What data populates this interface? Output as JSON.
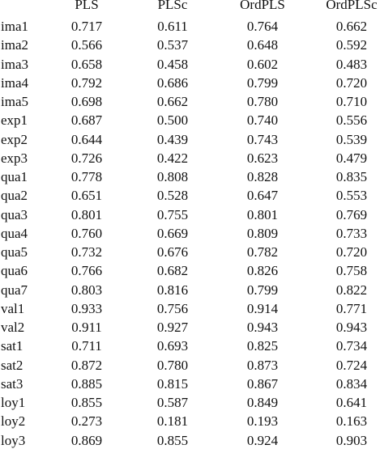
{
  "table": {
    "columns": [
      "PLS",
      "PLSc",
      "OrdPLS",
      "OrdPLSc"
    ],
    "rows": [
      [
        "ima1",
        "0.717",
        "0.611",
        "0.764",
        "0.662"
      ],
      [
        "ima2",
        "0.566",
        "0.537",
        "0.648",
        "0.592"
      ],
      [
        "ima3",
        "0.658",
        "0.458",
        "0.602",
        "0.483"
      ],
      [
        "ima4",
        "0.792",
        "0.686",
        "0.799",
        "0.720"
      ],
      [
        "ima5",
        "0.698",
        "0.662",
        "0.780",
        "0.710"
      ],
      [
        "exp1",
        "0.687",
        "0.500",
        "0.740",
        "0.556"
      ],
      [
        "exp2",
        "0.644",
        "0.439",
        "0.743",
        "0.539"
      ],
      [
        "exp3",
        "0.726",
        "0.422",
        "0.623",
        "0.479"
      ],
      [
        "qua1",
        "0.778",
        "0.808",
        "0.828",
        "0.835"
      ],
      [
        "qua2",
        "0.651",
        "0.528",
        "0.647",
        "0.553"
      ],
      [
        "qua3",
        "0.801",
        "0.755",
        "0.801",
        "0.769"
      ],
      [
        "qua4",
        "0.760",
        "0.669",
        "0.809",
        "0.733"
      ],
      [
        "qua5",
        "0.732",
        "0.676",
        "0.782",
        "0.720"
      ],
      [
        "qua6",
        "0.766",
        "0.682",
        "0.826",
        "0.758"
      ],
      [
        "qua7",
        "0.803",
        "0.816",
        "0.799",
        "0.822"
      ],
      [
        "val1",
        "0.933",
        "0.756",
        "0.914",
        "0.771"
      ],
      [
        "val2",
        "0.911",
        "0.927",
        "0.943",
        "0.943"
      ],
      [
        "sat1",
        "0.711",
        "0.693",
        "0.825",
        "0.734"
      ],
      [
        "sat2",
        "0.872",
        "0.780",
        "0.873",
        "0.724"
      ],
      [
        "sat3",
        "0.885",
        "0.815",
        "0.867",
        "0.834"
      ],
      [
        "loy1",
        "0.855",
        "0.587",
        "0.849",
        "0.641"
      ],
      [
        "loy2",
        "0.273",
        "0.181",
        "0.193",
        "0.163"
      ],
      [
        "loy3",
        "0.869",
        "0.855",
        "0.924",
        "0.903"
      ]
    ]
  }
}
